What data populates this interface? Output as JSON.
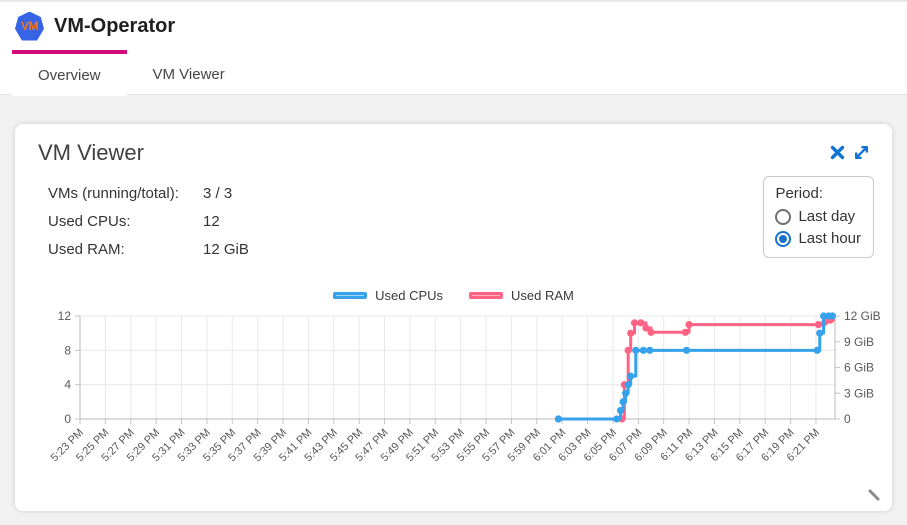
{
  "header": {
    "title": "VM-Operator",
    "logo_text": "VM"
  },
  "tabs": [
    {
      "label": "Overview",
      "active": true
    },
    {
      "label": "VM Viewer",
      "active": false
    }
  ],
  "card": {
    "title": "VM Viewer",
    "icons": [
      "close-icon",
      "expand-icon"
    ],
    "stats": [
      {
        "label": "VMs (running/total):",
        "value": "3 / 3"
      },
      {
        "label": "Used CPUs:",
        "value": "12"
      },
      {
        "label": "Used RAM:",
        "value": "12 GiB"
      }
    ],
    "period": {
      "label": "Period:",
      "options": [
        {
          "label": "Last day",
          "selected": false
        },
        {
          "label": "Last hour",
          "selected": true
        }
      ]
    }
  },
  "chart_data": {
    "type": "line",
    "stepped": true,
    "title": "",
    "x_axis": {
      "start_time": "5:23 PM",
      "min_minutes": 0,
      "max_minutes": 59.5,
      "tick_minutes": [
        0,
        2,
        4,
        6,
        8,
        10,
        12,
        14,
        16,
        18,
        20,
        22,
        24,
        26,
        28,
        30,
        32,
        34,
        36,
        38,
        40,
        42,
        44,
        46,
        48,
        50,
        52,
        54,
        56,
        58
      ],
      "tick_labels": [
        "5:23 PM",
        "5:25 PM",
        "5:27 PM",
        "5:29 PM",
        "5:31 PM",
        "5:33 PM",
        "5:35 PM",
        "5:37 PM",
        "5:39 PM",
        "5:41 PM",
        "5:43 PM",
        "5:45 PM",
        "5:47 PM",
        "5:49 PM",
        "5:51 PM",
        "5:53 PM",
        "5:55 PM",
        "5:57 PM",
        "5:59 PM",
        "6:01 PM",
        "6:03 PM",
        "6:05 PM",
        "6:07 PM",
        "6:09 PM",
        "6:11 PM",
        "6:13 PM",
        "6:15 PM",
        "6:17 PM",
        "6:19 PM",
        "6:21 PM"
      ]
    },
    "y_left": {
      "range": [
        0,
        12
      ],
      "ticks": [
        0,
        4,
        8,
        12
      ],
      "tick_labels": [
        "0",
        "4",
        "8",
        "12"
      ],
      "series": "Used CPUs"
    },
    "y_right": {
      "range": [
        0,
        12
      ],
      "tick_values": [
        0,
        3,
        6,
        9,
        12
      ],
      "tick_labels": [
        "0",
        "3 GiB",
        "6 GiB",
        "9 GiB",
        "12 GiB"
      ],
      "series": "Used RAM"
    },
    "legend": [
      {
        "label": "Used CPUs",
        "color": "#36a2eb",
        "fill": "#a9d3f3"
      },
      {
        "label": "Used RAM",
        "color": "#ff6384",
        "fill": "#f9b4c6"
      }
    ],
    "legend_position": "top-center",
    "grid": {
      "vertical": "every x tick",
      "horizontal": "left axis ticks only"
    },
    "series": [
      {
        "name": "Used CPUs",
        "axis": "left",
        "color": "#36a2eb",
        "points": [
          [
            37.7,
            0
          ],
          [
            42.3,
            0
          ],
          [
            42.6,
            1
          ],
          [
            42.8,
            2
          ],
          [
            43.0,
            3
          ],
          [
            43.2,
            4
          ],
          [
            43.4,
            5
          ],
          [
            43.8,
            8
          ],
          [
            44.4,
            8
          ],
          [
            44.9,
            8
          ],
          [
            47.8,
            8
          ],
          [
            58.1,
            8
          ],
          [
            58.3,
            10
          ],
          [
            58.6,
            12
          ],
          [
            59.0,
            12
          ],
          [
            59.3,
            12
          ]
        ]
      },
      {
        "name": "Used RAM",
        "axis": "right",
        "color": "#ff6384",
        "points": [
          [
            37.7,
            0
          ],
          [
            42.7,
            0
          ],
          [
            42.9,
            4
          ],
          [
            43.2,
            8
          ],
          [
            43.4,
            10
          ],
          [
            43.7,
            11.2
          ],
          [
            44.2,
            11.2
          ],
          [
            44.6,
            10.6
          ],
          [
            45.0,
            10.1
          ],
          [
            47.7,
            10.1
          ],
          [
            48.0,
            11
          ],
          [
            58.2,
            11
          ],
          [
            58.7,
            11.3
          ],
          [
            59.2,
            11.6
          ]
        ]
      }
    ]
  }
}
